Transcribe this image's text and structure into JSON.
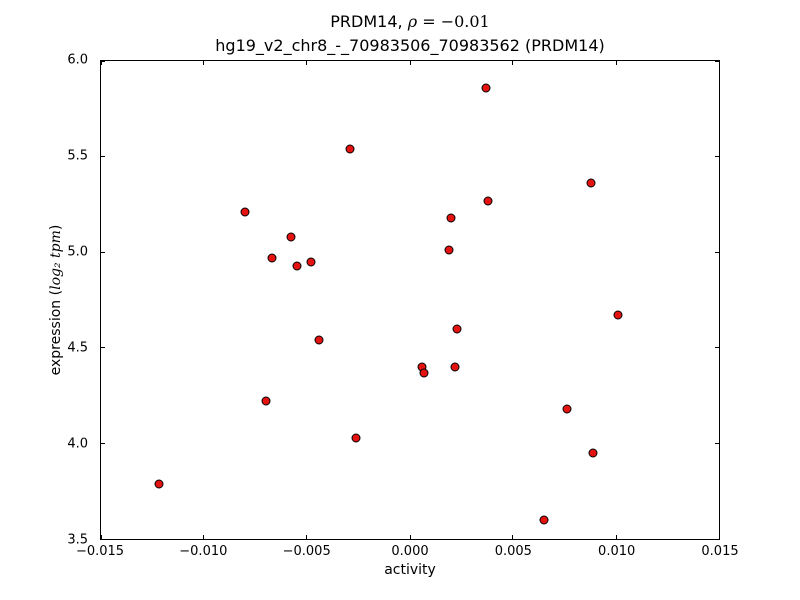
{
  "chart_data": {
    "type": "scatter",
    "title_prefix": "PRDM14, ",
    "title_rho": "ρ",
    "title_value": " = −0.01",
    "title_line2": "hg19_v2_chr8_-_70983506_70983562 (PRDM14)",
    "xlabel": "activity",
    "ylabel_prefix": "expression (",
    "ylabel_math": "log₂ tpm",
    "ylabel_suffix": ")",
    "xlim": [
      -0.015,
      0.015
    ],
    "ylim": [
      3.5,
      6.0
    ],
    "xticks": [
      "−0.015",
      "−0.010",
      "−0.005",
      "0.000",
      "0.005",
      "0.010",
      "0.015"
    ],
    "yticks": [
      "3.5",
      "4.0",
      "4.5",
      "5.0",
      "5.5",
      "6.0"
    ],
    "marker_color": "#e51212",
    "marker_edge_color": "#000000",
    "grid": false,
    "legend": null,
    "points": [
      [
        -0.0122,
        3.79
      ],
      [
        -0.008,
        5.21
      ],
      [
        -0.007,
        4.22
      ],
      [
        -0.0067,
        4.97
      ],
      [
        -0.0058,
        5.08
      ],
      [
        -0.0055,
        4.93
      ],
      [
        -0.0048,
        4.95
      ],
      [
        -0.0044,
        4.54
      ],
      [
        -0.0029,
        5.54
      ],
      [
        -0.0026,
        4.03
      ],
      [
        0.0006,
        4.4
      ],
      [
        0.0007,
        4.37
      ],
      [
        0.0019,
        5.01
      ],
      [
        0.002,
        5.18
      ],
      [
        0.0022,
        4.4
      ],
      [
        0.0023,
        4.6
      ],
      [
        0.0037,
        5.86
      ],
      [
        0.0038,
        5.27
      ],
      [
        0.0065,
        3.6
      ],
      [
        0.0076,
        4.18
      ],
      [
        0.0088,
        5.36
      ],
      [
        0.0089,
        3.95
      ],
      [
        0.0101,
        4.67
      ]
    ]
  }
}
